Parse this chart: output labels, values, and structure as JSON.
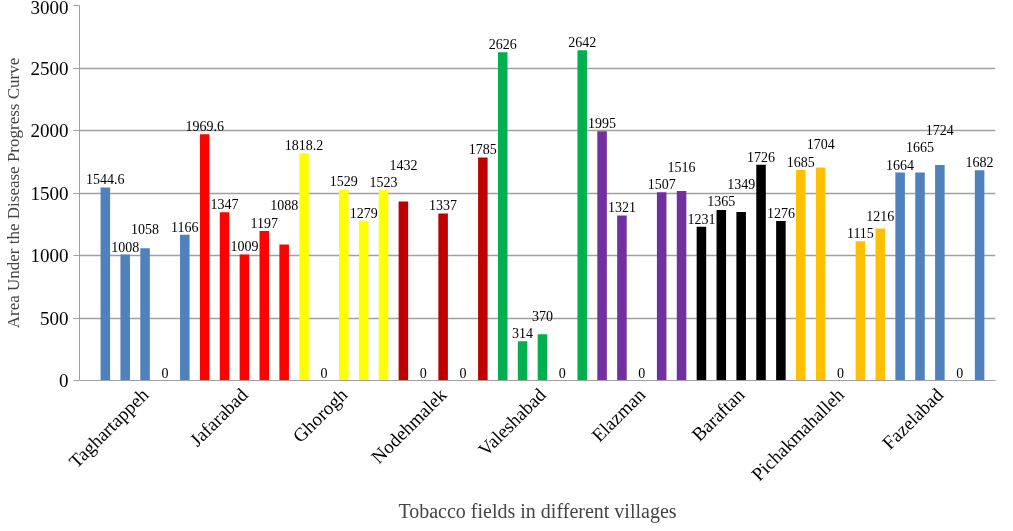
{
  "chart_data": {
    "type": "bar",
    "xlabel": "Tobacco fields in different villages",
    "ylabel": "Area Under the Disease Progress Curve",
    "categories": [
      null,
      null,
      "Taghartappeh",
      null,
      null,
      null,
      null,
      "Jafarabad",
      null,
      null,
      null,
      null,
      "Ghorogh",
      null,
      null,
      null,
      null,
      "Nodehmalek",
      null,
      null,
      null,
      null,
      "Valeshabad",
      null,
      null,
      null,
      null,
      "Elazman",
      null,
      null,
      null,
      null,
      "Baraftan",
      null,
      null,
      null,
      null,
      "Pichakmahalleh",
      null,
      null,
      null,
      null,
      "Fazelabad",
      null,
      null
    ],
    "values": [
      1544.6,
      1008,
      1058,
      0,
      1166,
      1969.6,
      1347,
      1009,
      1197,
      1088,
      1818.2,
      0,
      1529,
      1279,
      1523,
      1432,
      0,
      1337,
      0,
      1785,
      2626,
      314,
      370,
      0,
      2642,
      1995,
      1321,
      0,
      1507,
      1516,
      1231,
      1365,
      1349,
      1726,
      1276,
      1685,
      1704,
      0,
      1115,
      1216,
      1664,
      1665,
      1724,
      0,
      1682
    ],
    "colors": [
      "#4f81bd",
      "#4f81bd",
      "#4f81bd",
      "#4f81bd",
      "#4f81bd",
      "#ff0000",
      "#ff0000",
      "#ff0000",
      "#ff0000",
      "#ff0000",
      "#ffff00",
      "#ffff00",
      "#ffff00",
      "#ffff00",
      "#ffff00",
      "#c00000",
      "#c00000",
      "#c00000",
      "#c00000",
      "#c00000",
      "#00b050",
      "#00b050",
      "#00b050",
      "#00b050",
      "#00b050",
      "#7030a0",
      "#7030a0",
      "#7030a0",
      "#7030a0",
      "#7030a0",
      "#000000",
      "#000000",
      "#000000",
      "#000000",
      "#000000",
      "#ffc000",
      "#ffc000",
      "#ffc000",
      "#ffc000",
      "#ffc000",
      "#4f81bd",
      "#4f81bd",
      "#4f81bd",
      "#4f81bd",
      "#4f81bd"
    ],
    "ylim": [
      0,
      3000
    ],
    "yticks": [
      0,
      500,
      1000,
      1500,
      2000,
      2500,
      3000
    ],
    "grid": "y",
    "data_labels": true
  }
}
